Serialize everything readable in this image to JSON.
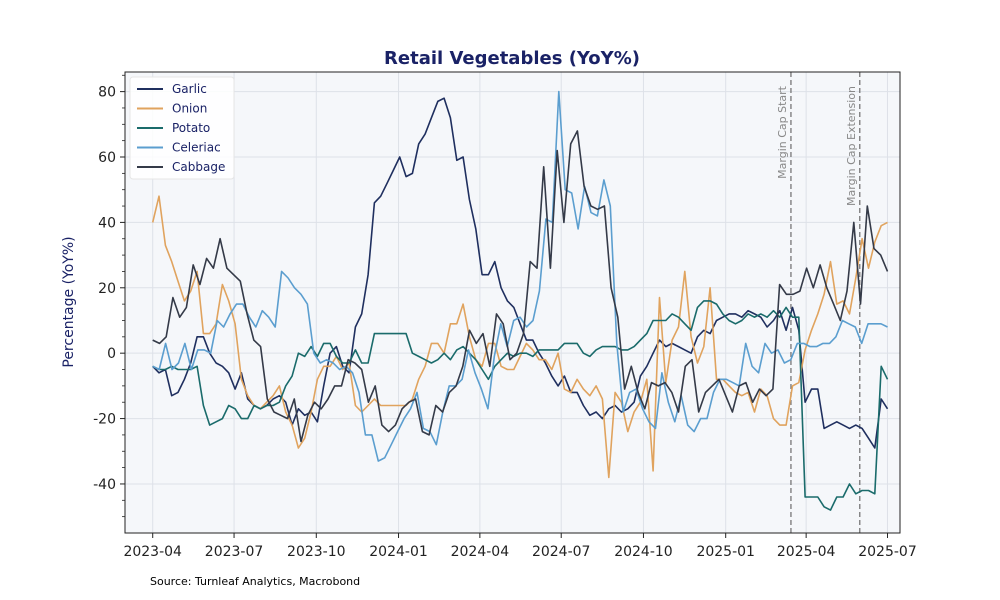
{
  "chart_data": {
    "type": "line",
    "title": "Retail Vegetables (YoY%)",
    "xlabel": "",
    "ylabel": "Percentage (YoY%)",
    "x_start": "2023-04-01",
    "x_end": "2025-07-01",
    "xlim": [
      "2023-03-01",
      "2025-07-15"
    ],
    "ylim": [
      -55,
      86
    ],
    "yticks": [
      -40,
      -20,
      0,
      20,
      40,
      60,
      80
    ],
    "xticks": [
      "2023-04",
      "2023-07",
      "2023-10",
      "2024-01",
      "2024-04",
      "2024-07",
      "2024-10",
      "2025-01",
      "2025-04",
      "2025-07"
    ],
    "grid": true,
    "legend_position": "top-left",
    "annotations": [
      {
        "date": "2025-03-15",
        "label": "Margin Cap Start"
      },
      {
        "date": "2025-05-31",
        "label": "Margin Cap Extension"
      }
    ],
    "series": [
      {
        "name": "Garlic",
        "color": "#1f2f5f",
        "values": [
          -4,
          -6,
          -5,
          -13,
          -12,
          -8,
          -3,
          5,
          5,
          0,
          -3,
          -4,
          -6,
          -11,
          -6,
          -14,
          -16,
          -17,
          -16,
          -14,
          -13,
          -15,
          -22,
          -17,
          -19,
          -18,
          -21,
          -10,
          0,
          2,
          -4,
          -6,
          8,
          12,
          24,
          46,
          48,
          52,
          56,
          60,
          54,
          55,
          64,
          67,
          72,
          77,
          78,
          72,
          59,
          60,
          47,
          38,
          24,
          24,
          28,
          20,
          16,
          14,
          9,
          4,
          4,
          0,
          -3,
          -7,
          -10,
          -7,
          -12,
          -12,
          -16,
          -19,
          -18,
          -20,
          -17,
          -16,
          -18,
          -17,
          -15,
          -7,
          -4,
          0,
          4,
          2,
          3,
          2,
          1,
          0,
          5,
          7,
          6,
          10,
          11,
          12,
          12,
          11,
          13,
          12,
          11,
          8,
          10,
          13,
          7,
          14,
          7,
          -15,
          -11,
          -11,
          -23,
          -22,
          -21,
          -22,
          -23,
          -22,
          -23,
          -26,
          -29,
          -14,
          -17
        ]
      },
      {
        "name": "Onion",
        "color": "#e0a35e",
        "values": [
          40,
          48,
          33,
          28,
          22,
          16,
          19,
          25,
          6,
          6,
          9,
          21,
          16,
          9,
          -8,
          -13,
          -16,
          -17,
          -15,
          -13,
          -10,
          -18,
          -22,
          -29,
          -26,
          -18,
          -8,
          -4,
          -4,
          -1,
          -5,
          -3,
          -16,
          -18,
          -16,
          -14,
          -16,
          -16,
          -16,
          -16,
          -16,
          -14,
          -8,
          -4,
          3,
          3,
          0,
          9,
          9,
          15,
          5,
          -2,
          -4,
          3,
          3,
          -4,
          -5,
          -5,
          -1,
          3,
          1,
          -2,
          -2,
          -5,
          0,
          -11,
          -12,
          -8,
          -11,
          -13,
          -10,
          -14,
          -38,
          -12,
          -15,
          -24,
          -18,
          -15,
          -8,
          -36,
          17,
          -9,
          4,
          8,
          25,
          5,
          -3,
          2,
          20,
          -8,
          -8,
          -10,
          -12,
          -13,
          -12,
          -18,
          -11,
          -13,
          -20,
          -22,
          -22,
          -10,
          -9,
          1,
          7,
          12,
          18,
          28,
          15,
          16,
          12,
          23,
          35,
          26,
          34,
          39,
          40
        ]
      },
      {
        "name": "Potato",
        "color": "#1a6b6b",
        "values": [
          -4,
          -5,
          -5,
          -4,
          -5,
          -5,
          -5,
          -4,
          -16,
          -22,
          -21,
          -20,
          -16,
          -17,
          -20,
          -20,
          -16,
          -17,
          -16,
          -16,
          -15,
          -10,
          -7,
          0,
          -1,
          2,
          -1,
          3,
          3,
          -1,
          -3,
          -3,
          1,
          -3,
          -3,
          6,
          6,
          6,
          6,
          6,
          6,
          0,
          -1,
          -2,
          -3,
          -2,
          0,
          -2,
          1,
          2,
          0,
          -2,
          -5,
          -8,
          -4,
          -2,
          0,
          -1,
          0,
          0,
          -1,
          1,
          1,
          1,
          1,
          3,
          3,
          3,
          0,
          -1,
          1,
          2,
          2,
          2,
          1,
          1,
          2,
          4,
          6,
          10,
          10,
          10,
          12,
          11,
          9,
          7,
          14,
          16,
          16,
          15,
          12,
          10,
          9,
          10,
          12,
          11,
          12,
          11,
          13,
          11,
          14,
          11,
          11,
          -44,
          -44,
          -44,
          -47,
          -48,
          -44,
          -44,
          -40,
          -43,
          -42,
          -42,
          -43,
          -4,
          -8
        ]
      },
      {
        "name": "Celeriac",
        "color": "#5b9ecf",
        "values": [
          -4,
          -5,
          3,
          -5,
          -3,
          3,
          -5,
          1,
          1,
          0,
          10,
          8,
          12,
          15,
          15,
          11,
          8,
          13,
          11,
          8,
          25,
          23,
          20,
          18,
          15,
          0,
          -3,
          -2,
          -3,
          -5,
          -4,
          -6,
          -12,
          -25,
          -25,
          -33,
          -32,
          -28,
          -24,
          -20,
          -17,
          -12,
          -23,
          -24,
          -28,
          -18,
          -10,
          -10,
          -8,
          1,
          -6,
          -11,
          -17,
          -1,
          9,
          2,
          10,
          11,
          8,
          10,
          19,
          41,
          40,
          80,
          50,
          49,
          38,
          51,
          43,
          42,
          53,
          45,
          3,
          -18,
          -12,
          -11,
          -17,
          -21,
          -23,
          -6,
          -15,
          -21,
          -13,
          -22,
          -24,
          -20,
          -20,
          -12,
          -8,
          -8,
          -9,
          -10,
          3,
          -4,
          -6,
          3,
          0,
          1,
          -3,
          -2,
          3,
          3,
          2,
          2,
          3,
          3,
          5,
          10,
          9,
          8,
          3,
          9,
          9,
          9,
          8
        ]
      },
      {
        "name": "Cabbage",
        "color": "#343a48",
        "values": [
          4,
          3,
          5,
          17,
          11,
          14,
          27,
          21,
          29,
          26,
          35,
          26,
          24,
          22,
          12,
          4,
          2,
          -14,
          -18,
          -19,
          -20,
          -14,
          -27,
          -19,
          -15,
          -17,
          -14,
          -10,
          -10,
          -2,
          -3,
          -5,
          -15,
          -10,
          -22,
          -24,
          -22,
          -17,
          -15,
          -14,
          -24,
          -25,
          -16,
          -18,
          -12,
          -10,
          -4,
          7,
          3,
          6,
          -4,
          12,
          9,
          -2,
          0,
          6,
          28,
          26,
          57,
          26,
          62,
          40,
          64,
          68,
          51,
          45,
          44,
          45,
          20,
          11,
          -11,
          -4,
          -12,
          -17,
          -9,
          -10,
          -9,
          -12,
          -18,
          -4,
          -2,
          -18,
          -12,
          -10,
          -8,
          -13,
          -18,
          -10,
          -9,
          -15,
          -11,
          -13,
          -11,
          21,
          18,
          18,
          19,
          26,
          20,
          27,
          20,
          15,
          10,
          19,
          40,
          15,
          45,
          32,
          30,
          25
        ]
      }
    ]
  },
  "source_text": "Source: Turnleaf Analytics, Macrobond"
}
